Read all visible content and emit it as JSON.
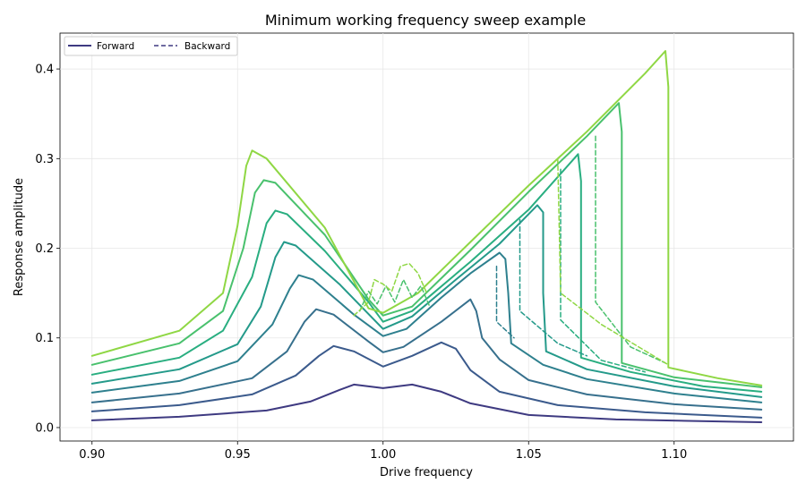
{
  "chart_data": {
    "type": "line",
    "title": "Minimum working frequency sweep example",
    "xlabel": "Drive frequency",
    "ylabel": "Response amplitude",
    "xlim": [
      0.889,
      1.141
    ],
    "ylim": [
      -0.015,
      0.44
    ],
    "xticks": [
      0.9,
      0.95,
      1.0,
      1.05,
      1.1
    ],
    "xtick_labels": [
      "0.90",
      "0.95",
      "1.00",
      "1.05",
      "1.10"
    ],
    "yticks": [
      0.0,
      0.1,
      0.2,
      0.3,
      0.4
    ],
    "ytick_labels": [
      "0.0",
      "0.1",
      "0.2",
      "0.3",
      "0.4"
    ],
    "grid": true,
    "legend": {
      "position": "top-left",
      "entries": [
        {
          "label": "Forward",
          "style": "solid",
          "color": "#3e3a81"
        },
        {
          "label": "Backward",
          "style": "dashed",
          "color": "#3e3a81"
        }
      ]
    },
    "series": [
      {
        "direction": "forward",
        "color": "#3e3a81",
        "points": [
          [
            0.9,
            0.008
          ],
          [
            0.93,
            0.012
          ],
          [
            0.96,
            0.019
          ],
          [
            0.975,
            0.029
          ],
          [
            0.985,
            0.042
          ],
          [
            0.99,
            0.048
          ],
          [
            1.0,
            0.044
          ],
          [
            1.01,
            0.048
          ],
          [
            1.02,
            0.04
          ],
          [
            1.03,
            0.027
          ],
          [
            1.05,
            0.014
          ],
          [
            1.08,
            0.009
          ],
          [
            1.13,
            0.006
          ]
        ]
      },
      {
        "direction": "forward",
        "color": "#3b5a8c",
        "points": [
          [
            0.9,
            0.018
          ],
          [
            0.93,
            0.025
          ],
          [
            0.955,
            0.037
          ],
          [
            0.97,
            0.058
          ],
          [
            0.978,
            0.08
          ],
          [
            0.983,
            0.091
          ],
          [
            0.99,
            0.085
          ],
          [
            1.0,
            0.068
          ],
          [
            1.01,
            0.08
          ],
          [
            1.02,
            0.095
          ],
          [
            1.025,
            0.088
          ],
          [
            1.03,
            0.064
          ],
          [
            1.04,
            0.04
          ],
          [
            1.06,
            0.025
          ],
          [
            1.09,
            0.017
          ],
          [
            1.13,
            0.011
          ]
        ]
      },
      {
        "direction": "forward",
        "color": "#37708d",
        "points": [
          [
            0.9,
            0.028
          ],
          [
            0.93,
            0.038
          ],
          [
            0.955,
            0.055
          ],
          [
            0.967,
            0.085
          ],
          [
            0.973,
            0.118
          ],
          [
            0.977,
            0.132
          ],
          [
            0.983,
            0.126
          ],
          [
            0.995,
            0.096
          ],
          [
            1.0,
            0.084
          ],
          [
            1.007,
            0.09
          ],
          [
            1.02,
            0.118
          ],
          [
            1.03,
            0.143
          ],
          [
            1.032,
            0.13
          ],
          [
            1.034,
            0.1
          ],
          [
            1.04,
            0.076
          ],
          [
            1.05,
            0.053
          ],
          [
            1.07,
            0.037
          ],
          [
            1.1,
            0.026
          ],
          [
            1.13,
            0.02
          ]
        ]
      },
      {
        "direction": "forward",
        "color": "#2e808e",
        "points": [
          [
            0.9,
            0.039
          ],
          [
            0.93,
            0.052
          ],
          [
            0.95,
            0.074
          ],
          [
            0.962,
            0.115
          ],
          [
            0.968,
            0.155
          ],
          [
            0.971,
            0.17
          ],
          [
            0.976,
            0.165
          ],
          [
            0.99,
            0.126
          ],
          [
            1.0,
            0.102
          ],
          [
            1.008,
            0.11
          ],
          [
            1.02,
            0.145
          ],
          [
            1.03,
            0.172
          ],
          [
            1.04,
            0.195
          ],
          [
            1.042,
            0.188
          ],
          [
            1.043,
            0.15
          ],
          [
            1.044,
            0.094
          ],
          [
            1.055,
            0.07
          ],
          [
            1.07,
            0.054
          ],
          [
            1.1,
            0.038
          ],
          [
            1.13,
            0.028
          ]
        ]
      },
      {
        "direction": "forward",
        "color": "#249a8a",
        "points": [
          [
            0.9,
            0.049
          ],
          [
            0.93,
            0.065
          ],
          [
            0.95,
            0.093
          ],
          [
            0.958,
            0.135
          ],
          [
            0.963,
            0.19
          ],
          [
            0.966,
            0.207
          ],
          [
            0.97,
            0.203
          ],
          [
            0.985,
            0.16
          ],
          [
            1.0,
            0.11
          ],
          [
            1.01,
            0.124
          ],
          [
            1.025,
            0.165
          ],
          [
            1.04,
            0.205
          ],
          [
            1.053,
            0.248
          ],
          [
            1.055,
            0.24
          ],
          [
            1.055,
            0.15
          ],
          [
            1.056,
            0.085
          ],
          [
            1.07,
            0.065
          ],
          [
            1.1,
            0.046
          ],
          [
            1.13,
            0.034
          ]
        ]
      },
      {
        "direction": "forward",
        "color": "#29ae80",
        "points": [
          [
            0.9,
            0.059
          ],
          [
            0.93,
            0.078
          ],
          [
            0.945,
            0.108
          ],
          [
            0.955,
            0.168
          ],
          [
            0.96,
            0.228
          ],
          [
            0.963,
            0.242
          ],
          [
            0.967,
            0.238
          ],
          [
            0.98,
            0.197
          ],
          [
            0.995,
            0.14
          ],
          [
            1.0,
            0.118
          ],
          [
            1.01,
            0.13
          ],
          [
            1.03,
            0.185
          ],
          [
            1.05,
            0.243
          ],
          [
            1.067,
            0.305
          ],
          [
            1.068,
            0.275
          ],
          [
            1.068,
            0.078
          ],
          [
            1.085,
            0.062
          ],
          [
            1.11,
            0.046
          ],
          [
            1.13,
            0.04
          ]
        ]
      },
      {
        "direction": "forward",
        "color": "#49c16d",
        "points": [
          [
            0.9,
            0.07
          ],
          [
            0.93,
            0.094
          ],
          [
            0.945,
            0.13
          ],
          [
            0.952,
            0.2
          ],
          [
            0.956,
            0.262
          ],
          [
            0.959,
            0.276
          ],
          [
            0.963,
            0.273
          ],
          [
            0.98,
            0.215
          ],
          [
            0.995,
            0.143
          ],
          [
            1.0,
            0.125
          ],
          [
            1.01,
            0.135
          ],
          [
            1.03,
            0.198
          ],
          [
            1.05,
            0.263
          ],
          [
            1.07,
            0.325
          ],
          [
            1.081,
            0.362
          ],
          [
            1.082,
            0.33
          ],
          [
            1.082,
            0.072
          ],
          [
            1.1,
            0.056
          ],
          [
            1.13,
            0.045
          ]
        ]
      },
      {
        "direction": "forward",
        "color": "#8fd744",
        "points": [
          [
            0.9,
            0.08
          ],
          [
            0.93,
            0.108
          ],
          [
            0.945,
            0.15
          ],
          [
            0.95,
            0.225
          ],
          [
            0.953,
            0.292
          ],
          [
            0.955,
            0.309
          ],
          [
            0.96,
            0.3
          ],
          [
            0.98,
            0.223
          ],
          [
            0.995,
            0.133
          ],
          [
            1.0,
            0.128
          ],
          [
            1.012,
            0.15
          ],
          [
            1.03,
            0.207
          ],
          [
            1.05,
            0.27
          ],
          [
            1.07,
            0.33
          ],
          [
            1.09,
            0.395
          ],
          [
            1.097,
            0.42
          ],
          [
            1.098,
            0.38
          ],
          [
            1.098,
            0.067
          ],
          [
            1.115,
            0.055
          ],
          [
            1.13,
            0.047
          ]
        ]
      },
      {
        "direction": "backward",
        "color": "#29ae80",
        "points": [
          [
            1.061,
            0.288
          ],
          [
            1.061,
            0.12
          ],
          [
            1.075,
            0.075
          ],
          [
            1.09,
            0.062
          ]
        ]
      },
      {
        "direction": "backward",
        "color": "#49c16d",
        "points": [
          [
            1.073,
            0.325
          ],
          [
            1.073,
            0.14
          ],
          [
            1.085,
            0.09
          ],
          [
            1.097,
            0.072
          ]
        ]
      },
      {
        "direction": "backward",
        "color": "#8fd744",
        "points": [
          [
            1.06,
            0.3
          ],
          [
            1.061,
            0.15
          ],
          [
            1.075,
            0.115
          ],
          [
            1.098,
            0.07
          ]
        ]
      },
      {
        "direction": "backward",
        "color": "#249a8a",
        "points": [
          [
            1.047,
            0.232
          ],
          [
            1.047,
            0.13
          ],
          [
            1.06,
            0.094
          ],
          [
            1.07,
            0.08
          ]
        ]
      },
      {
        "direction": "backward",
        "color": "#2e808e",
        "points": [
          [
            1.039,
            0.18
          ],
          [
            1.039,
            0.118
          ],
          [
            1.045,
            0.1
          ]
        ]
      },
      {
        "direction": "backward",
        "color": "#49c16d",
        "points": [
          [
            0.992,
            0.13
          ],
          [
            0.995,
            0.152
          ],
          [
            0.998,
            0.138
          ],
          [
            1.001,
            0.158
          ],
          [
            1.004,
            0.14
          ],
          [
            1.007,
            0.165
          ],
          [
            1.01,
            0.145
          ],
          [
            1.013,
            0.158
          ],
          [
            1.016,
            0.135
          ]
        ]
      },
      {
        "direction": "backward",
        "color": "#8fd744",
        "points": [
          [
            0.99,
            0.125
          ],
          [
            0.995,
            0.14
          ],
          [
            0.997,
            0.165
          ],
          [
            1.0,
            0.16
          ],
          [
            1.003,
            0.152
          ],
          [
            1.006,
            0.18
          ],
          [
            1.009,
            0.183
          ],
          [
            1.012,
            0.172
          ],
          [
            1.015,
            0.15
          ]
        ]
      }
    ]
  }
}
